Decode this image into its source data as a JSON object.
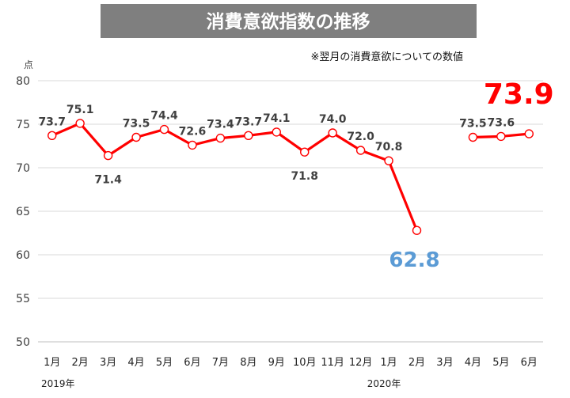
{
  "chart_data": {
    "type": "line",
    "title": "消費意欲指数の推移",
    "note": "※翌月の消費意欲についての数値",
    "ylabel": "点",
    "ylim": [
      50,
      80
    ],
    "yticks": [
      80,
      75,
      70,
      65,
      60,
      55,
      50
    ],
    "categories": [
      "1月",
      "2月",
      "3月",
      "4月",
      "5月",
      "6月",
      "7月",
      "8月",
      "9月",
      "10月",
      "11月",
      "12月",
      "1月",
      "2月",
      "3月",
      "4月",
      "5月",
      "6月"
    ],
    "year_labels": [
      "2019年",
      "2020年"
    ],
    "series": [
      {
        "name": "消費意欲指数",
        "values": [
          73.7,
          75.1,
          71.4,
          73.5,
          74.4,
          72.6,
          73.4,
          73.7,
          74.1,
          71.8,
          74.0,
          72.0,
          70.8,
          62.8,
          null,
          73.5,
          73.6,
          73.9
        ],
        "labels": [
          "73.7",
          "75.1",
          "71.4",
          "73.5",
          "74.4",
          "72.6",
          "73.4",
          "73.7",
          "74.1",
          "71.8",
          "74.0",
          "72.0",
          "70.8",
          "62.8",
          "",
          "73.5",
          "73.6",
          "73.9"
        ],
        "color": "#ff0000"
      }
    ],
    "highlight_colors": {
      "low": "#5b9bd5",
      "last": "#ff0000"
    }
  }
}
